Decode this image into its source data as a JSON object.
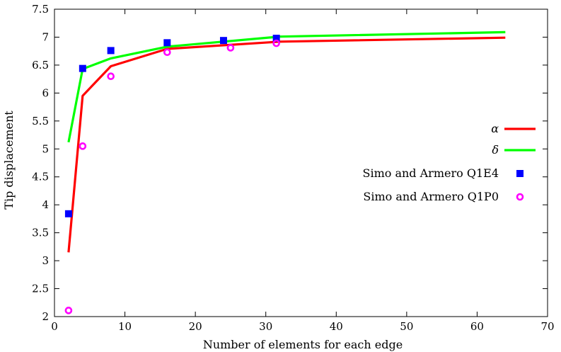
{
  "chart_data": {
    "type": "line",
    "title": "",
    "xlabel": "Number of elements for each edge",
    "ylabel": "Tip displacement",
    "xlim": [
      0,
      70
    ],
    "ylim": [
      2,
      7.5
    ],
    "xticks": [
      0,
      10,
      20,
      30,
      40,
      50,
      60,
      70
    ],
    "yticks": [
      2,
      2.5,
      3,
      3.5,
      4,
      4.5,
      5,
      5.5,
      6,
      6.5,
      7,
      7.5
    ],
    "xtick_labels": [
      "0",
      "10",
      "20",
      "30",
      "40",
      "50",
      "60",
      "70"
    ],
    "ytick_labels": [
      "2",
      "2.5",
      "3",
      "3.5",
      "4",
      "4.5",
      "5",
      "5.5",
      "6",
      "6.5",
      "7",
      "7.5"
    ],
    "grid": false,
    "legend_position": "right",
    "series": [
      {
        "name": "α",
        "kind": "line",
        "color": "#ff0000",
        "x": [
          2,
          4,
          8,
          16,
          32,
          64
        ],
        "y": [
          3.15,
          5.95,
          6.48,
          6.79,
          6.92,
          6.99
        ]
      },
      {
        "name": "δ",
        "kind": "line",
        "color": "#00ff00",
        "x": [
          2,
          4,
          8,
          16,
          32,
          64
        ],
        "y": [
          5.12,
          6.43,
          6.62,
          6.83,
          7.01,
          7.09
        ]
      },
      {
        "name": "Simo and Armero Q1E4",
        "kind": "square-marker",
        "color": "#0000ff",
        "x": [
          2,
          4,
          8,
          16,
          24,
          31.5
        ],
        "y": [
          3.84,
          6.44,
          6.76,
          6.9,
          6.94,
          6.98
        ]
      },
      {
        "name": "Simo and Armero Q1P0",
        "kind": "circle-marker",
        "color": "#ff00ff",
        "x": [
          2,
          4,
          8,
          16,
          25,
          31.5
        ],
        "y": [
          2.11,
          5.05,
          6.3,
          6.73,
          6.81,
          6.89
        ]
      }
    ]
  }
}
